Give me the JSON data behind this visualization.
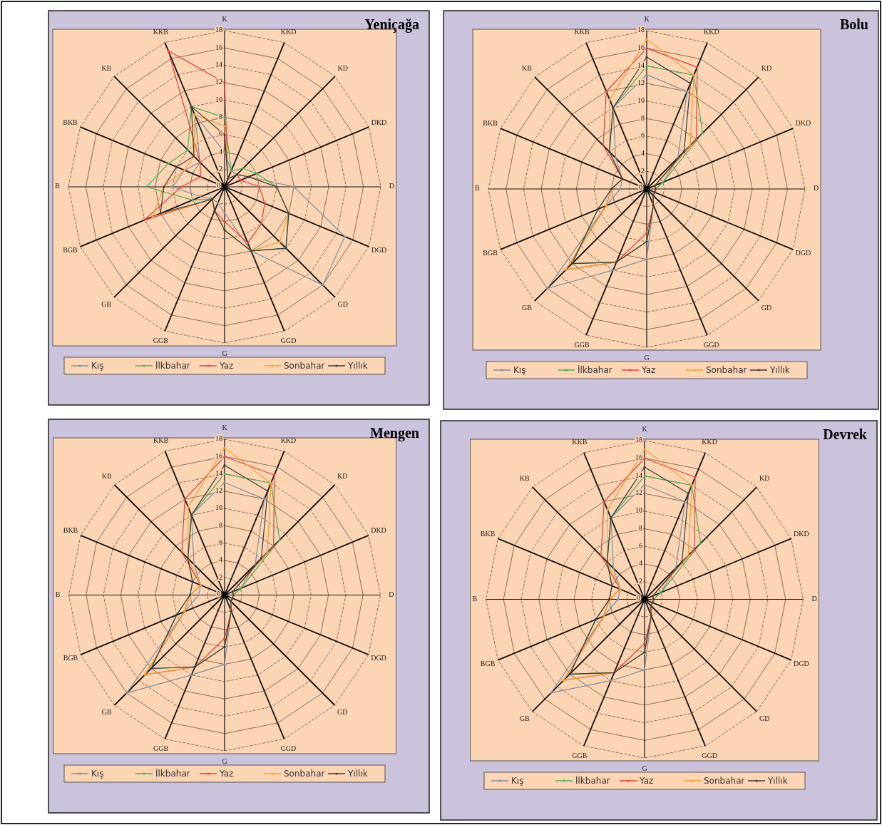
{
  "chart_data": [
    {
      "type": "radar",
      "title": "Yeniçağa",
      "categories": [
        "K",
        "KKD",
        "KD",
        "DKD",
        "D",
        "DGD",
        "GD",
        "GGD",
        "G",
        "GGB",
        "GB",
        "BGB",
        "B",
        "BKB",
        "KB",
        "KKB"
      ],
      "ylim": [
        0,
        18
      ],
      "yticks": [
        0,
        2,
        4,
        6,
        8,
        10,
        12,
        14,
        16,
        18
      ],
      "legend": "bottom",
      "marker": "circle",
      "series": [
        {
          "name": "Kış",
          "color": "#7f8ea0",
          "values": [
            4,
            2,
            2,
            3,
            8,
            15,
            16,
            8,
            3,
            2,
            2,
            3,
            6,
            5,
            4,
            9
          ]
        },
        {
          "name": "İlkbahar",
          "color": "#4caf50",
          "values": [
            8,
            2,
            3,
            4,
            6,
            8,
            10,
            8,
            5,
            3,
            2,
            4,
            9,
            7,
            6,
            10
          ]
        },
        {
          "name": "Yaz",
          "color": "#e0403a",
          "values": [
            12,
            1,
            2,
            2,
            4,
            5,
            6,
            7,
            4,
            3,
            2,
            10,
            5,
            3,
            4,
            17
          ]
        },
        {
          "name": "Sonbahar",
          "color": "#f0a030",
          "values": [
            7,
            1,
            2,
            3,
            6,
            8,
            9,
            8,
            5,
            3,
            2,
            9,
            7,
            5,
            5,
            9
          ]
        },
        {
          "name": "Yıllık",
          "color": "#3a3a3a",
          "values": [
            6,
            1,
            2,
            3,
            6,
            8,
            10,
            8,
            5,
            3,
            2,
            8,
            7,
            6,
            5,
            10
          ]
        }
      ]
    },
    {
      "type": "radar",
      "title": "Bolu",
      "categories": [
        "K",
        "KKD",
        "KD",
        "DKD",
        "D",
        "DGD",
        "GD",
        "GGD",
        "G",
        "GGB",
        "GB",
        "BGB",
        "B",
        "BKB",
        "KB",
        "KKB"
      ],
      "ylim": [
        0,
        18
      ],
      "yticks": [
        0,
        2,
        4,
        6,
        8,
        10,
        12,
        14,
        16,
        18
      ],
      "legend": "bottom",
      "marker": "circle",
      "series": [
        {
          "name": "Kış",
          "color": "#7f8ea0",
          "values": [
            13,
            12,
            5,
            2,
            1,
            1,
            1,
            2,
            8,
            10,
            16,
            5,
            3,
            3,
            5,
            10
          ]
        },
        {
          "name": "İlkbahar",
          "color": "#4caf50",
          "values": [
            14,
            14,
            9,
            2,
            1,
            1,
            1,
            2,
            6,
            9,
            12,
            6,
            4,
            3,
            6,
            10
          ]
        },
        {
          "name": "Yaz",
          "color": "#e0403a",
          "values": [
            16,
            15,
            8,
            1,
            1,
            1,
            1,
            2,
            5,
            9,
            13,
            5,
            4,
            3,
            7,
            12
          ]
        },
        {
          "name": "Sonbahar",
          "color": "#f0a030",
          "values": [
            17,
            14,
            7,
            1,
            1,
            1,
            1,
            2,
            6,
            9,
            13,
            5,
            4,
            3,
            6,
            11
          ]
        },
        {
          "name": "Yıllık",
          "color": "#3a3a3a",
          "values": [
            15,
            13,
            6,
            1,
            1,
            1,
            1,
            2,
            6,
            9,
            12,
            6,
            4,
            3,
            6,
            10
          ]
        }
      ]
    },
    {
      "type": "radar",
      "title": "Mengen",
      "categories": [
        "K",
        "KKD",
        "KD",
        "DKD",
        "D",
        "DGD",
        "GD",
        "GGD",
        "G",
        "GGB",
        "GB",
        "BGB",
        "B",
        "BKB",
        "KB",
        "KKB"
      ],
      "ylim": [
        0,
        18
      ],
      "yticks": [
        0,
        2,
        4,
        6,
        8,
        10,
        12,
        14,
        16,
        18
      ],
      "legend": "bottom",
      "marker": "circle",
      "series": [
        {
          "name": "Kış",
          "color": "#7f8ea0",
          "values": [
            13,
            12,
            5,
            2,
            1,
            1,
            1,
            2,
            8,
            10,
            16,
            5,
            3,
            3,
            5,
            10
          ]
        },
        {
          "name": "İlkbahar",
          "color": "#4caf50",
          "values": [
            14,
            14,
            9,
            2,
            1,
            1,
            1,
            2,
            6,
            9,
            12,
            6,
            4,
            4,
            6,
            10
          ]
        },
        {
          "name": "Yaz",
          "color": "#e0403a",
          "values": [
            16,
            15,
            8,
            1,
            1,
            1,
            1,
            2,
            5,
            9,
            13,
            5,
            4,
            3,
            7,
            12
          ]
        },
        {
          "name": "Sonbahar",
          "color": "#f0a030",
          "values": [
            17,
            14,
            7,
            1,
            1,
            1,
            1,
            2,
            6,
            9,
            13,
            5,
            4,
            3,
            6,
            11
          ]
        },
        {
          "name": "Yıllık",
          "color": "#3a3a3a",
          "values": [
            15,
            13,
            6,
            1,
            1,
            1,
            1,
            2,
            6,
            9,
            12,
            6,
            4,
            4,
            6,
            10
          ]
        }
      ]
    },
    {
      "type": "radar",
      "title": "Devrek",
      "categories": [
        "K",
        "KKD",
        "KD",
        "DKD",
        "D",
        "DGD",
        "GD",
        "GGD",
        "G",
        "GGB",
        "GB",
        "BGB",
        "B",
        "BKB",
        "KB",
        "KKB"
      ],
      "ylim": [
        0,
        18
      ],
      "yticks": [
        0,
        2,
        4,
        6,
        8,
        10,
        12,
        14,
        16,
        18
      ],
      "legend": "bottom",
      "marker": "circle",
      "series": [
        {
          "name": "Kış",
          "color": "#7f8ea0",
          "values": [
            13,
            12,
            5,
            2,
            1,
            1,
            1,
            2,
            8,
            10,
            15,
            5,
            3,
            3,
            5,
            10
          ]
        },
        {
          "name": "İlkbahar",
          "color": "#4caf50",
          "values": [
            14,
            14,
            9,
            2,
            1,
            1,
            1,
            2,
            6,
            9,
            12,
            6,
            4,
            4,
            6,
            10
          ]
        },
        {
          "name": "Yaz",
          "color": "#e0403a",
          "values": [
            16,
            15,
            8,
            1,
            1,
            1,
            1,
            2,
            5,
            9,
            13,
            5,
            4,
            3,
            7,
            12
          ]
        },
        {
          "name": "Sonbahar",
          "color": "#f0a030",
          "values": [
            17,
            14,
            7,
            1,
            1,
            1,
            1,
            2,
            6,
            9,
            13,
            5,
            4,
            3,
            6,
            11
          ]
        },
        {
          "name": "Yıllık",
          "color": "#3a3a3a",
          "values": [
            15,
            13,
            6,
            1,
            1,
            1,
            1,
            2,
            6,
            9,
            12,
            6,
            4,
            4,
            6,
            10
          ]
        }
      ]
    }
  ]
}
